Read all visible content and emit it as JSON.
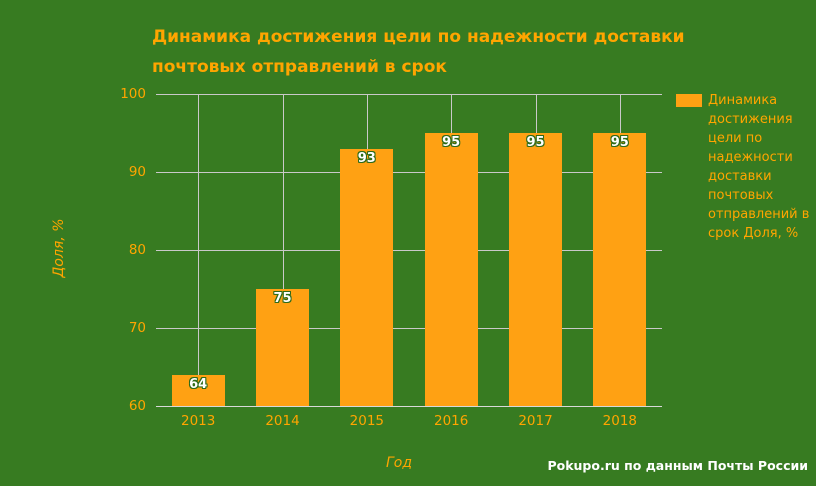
{
  "colors": {
    "background": "#377B21",
    "text_orange": "#FFA500",
    "bar": "#FFA113",
    "gridline": "#C9C9C9",
    "axis_line": "#D9D9D9",
    "value_label_text": "#FFFFFF",
    "value_label_outline": "#2E6B19",
    "attribution_text": "#FFFFFF"
  },
  "chart_data": {
    "type": "bar",
    "title": "Динамика достижения цели по надежности доставки почтовых отправлений в срок",
    "title_lines": [
      "Динамика достижения цели по надежности доставки",
      "почтовых отправлений в срок"
    ],
    "categories": [
      "2013",
      "2014",
      "2015",
      "2016",
      "2017",
      "2018"
    ],
    "values": [
      64,
      75,
      93,
      95,
      95,
      95
    ],
    "xlabel": "Год",
    "ylabel": "Доля, %",
    "ylim": [
      60,
      100
    ],
    "yticks": [
      60,
      70,
      80,
      90,
      100
    ],
    "grid": true,
    "bar_labels_visible": true,
    "legend": {
      "position": "right",
      "label": "Динамика достижения цели по надежности доставки почтовых отправлений в срок Доля, %",
      "label_lines": [
        "Динамика",
        "достижения",
        "цели по",
        "надежности",
        "доставки",
        "почтовых",
        "отправлений в",
        "срок Доля, %"
      ]
    }
  },
  "footer": {
    "attribution": "Pokupo.ru по данным Почты России"
  }
}
